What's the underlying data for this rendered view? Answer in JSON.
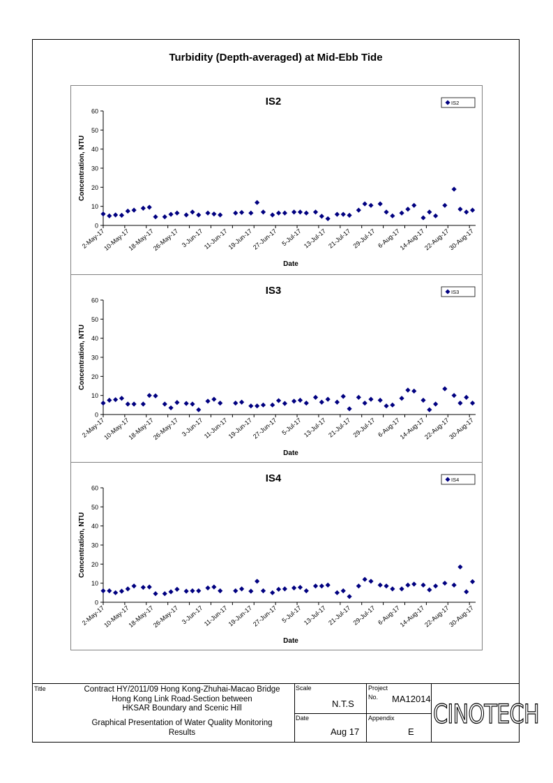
{
  "page_title": "Turbidity (Depth-averaged) at Mid-Ebb Tide",
  "chart_data": [
    {
      "type": "scatter",
      "title": "IS2",
      "xlabel": "Date",
      "ylabel": "Concentration, NTU",
      "ylim": [
        0,
        60
      ],
      "yticks": [
        0,
        10,
        20,
        30,
        40,
        50,
        60
      ],
      "xlim": [
        "2017-05-02",
        "2017-08-31"
      ],
      "xtick_labels": [
        "2-May-17",
        "10-May-17",
        "18-May-17",
        "26-May-17",
        "3-Jun-17",
        "11-Jun-17",
        "19-Jun-17",
        "27-Jun-17",
        "5-Jul-17",
        "13-Jul-17",
        "21-Jul-17",
        "29-Jul-17",
        "6-Aug-17",
        "14-Aug-17",
        "22-Aug-17",
        "30-Aug-17"
      ],
      "legend": "top-right",
      "marker_color": "#000080",
      "series": [
        {
          "name": "IS2",
          "points": [
            [
              "2017-05-02",
              6.0
            ],
            [
              "2017-05-04",
              5.0
            ],
            [
              "2017-05-06",
              5.5
            ],
            [
              "2017-05-08",
              5.3
            ],
            [
              "2017-05-10",
              7.5
            ],
            [
              "2017-05-12",
              8.0
            ],
            [
              "2017-05-15",
              9.0
            ],
            [
              "2017-05-17",
              9.5
            ],
            [
              "2017-05-19",
              4.5
            ],
            [
              "2017-05-22",
              4.5
            ],
            [
              "2017-05-24",
              5.8
            ],
            [
              "2017-05-26",
              6.5
            ],
            [
              "2017-05-29",
              5.5
            ],
            [
              "2017-05-31",
              7.0
            ],
            [
              "2017-06-02",
              5.5
            ],
            [
              "2017-06-05",
              6.5
            ],
            [
              "2017-06-07",
              6.0
            ],
            [
              "2017-06-09",
              5.5
            ],
            [
              "2017-06-14",
              6.5
            ],
            [
              "2017-06-16",
              6.8
            ],
            [
              "2017-06-19",
              6.5
            ],
            [
              "2017-06-21",
              12.0
            ],
            [
              "2017-06-23",
              7.0
            ],
            [
              "2017-06-26",
              5.5
            ],
            [
              "2017-06-28",
              6.5
            ],
            [
              "2017-06-30",
              6.5
            ],
            [
              "2017-07-03",
              7.0
            ],
            [
              "2017-07-05",
              7.0
            ],
            [
              "2017-07-07",
              6.5
            ],
            [
              "2017-07-10",
              7.0
            ],
            [
              "2017-07-12",
              4.8
            ],
            [
              "2017-07-14",
              3.5
            ],
            [
              "2017-07-17",
              5.8
            ],
            [
              "2017-07-19",
              5.8
            ],
            [
              "2017-07-21",
              5.3
            ],
            [
              "2017-07-24",
              8.0
            ],
            [
              "2017-07-26",
              11.3
            ],
            [
              "2017-07-28",
              10.5
            ],
            [
              "2017-07-31",
              11.3
            ],
            [
              "2017-08-02",
              7.0
            ],
            [
              "2017-08-04",
              5.0
            ],
            [
              "2017-08-07",
              6.5
            ],
            [
              "2017-08-09",
              8.5
            ],
            [
              "2017-08-11",
              10.5
            ],
            [
              "2017-08-14",
              4.0
            ],
            [
              "2017-08-16",
              7.0
            ],
            [
              "2017-08-18",
              5.0
            ],
            [
              "2017-08-21",
              10.5
            ],
            [
              "2017-08-24",
              19.0
            ],
            [
              "2017-08-26",
              8.5
            ],
            [
              "2017-08-28",
              7.0
            ],
            [
              "2017-08-30",
              8.0
            ]
          ]
        }
      ]
    },
    {
      "type": "scatter",
      "title": "IS3",
      "xlabel": "Date",
      "ylabel": "Concentration, NTU",
      "ylim": [
        0,
        60
      ],
      "yticks": [
        0,
        10,
        20,
        30,
        40,
        50,
        60
      ],
      "xlim": [
        "2017-05-02",
        "2017-08-31"
      ],
      "xtick_labels": [
        "2-May-17",
        "10-May-17",
        "18-May-17",
        "26-May-17",
        "3-Jun-17",
        "11-Jun-17",
        "19-Jun-17",
        "27-Jun-17",
        "5-Jul-17",
        "13-Jul-17",
        "21-Jul-17",
        "29-Jul-17",
        "6-Aug-17",
        "14-Aug-17",
        "22-Aug-17",
        "30-Aug-17"
      ],
      "legend": "top-right",
      "marker_color": "#000080",
      "series": [
        {
          "name": "IS3",
          "points": [
            [
              "2017-05-02",
              6.0
            ],
            [
              "2017-05-04",
              7.5
            ],
            [
              "2017-05-06",
              7.8
            ],
            [
              "2017-05-08",
              8.5
            ],
            [
              "2017-05-10",
              5.5
            ],
            [
              "2017-05-12",
              5.5
            ],
            [
              "2017-05-15",
              5.5
            ],
            [
              "2017-05-17",
              10.0
            ],
            [
              "2017-05-19",
              9.8
            ],
            [
              "2017-05-22",
              5.5
            ],
            [
              "2017-05-24",
              3.5
            ],
            [
              "2017-05-26",
              6.3
            ],
            [
              "2017-05-29",
              5.8
            ],
            [
              "2017-05-31",
              5.5
            ],
            [
              "2017-06-02",
              2.5
            ],
            [
              "2017-06-05",
              7.0
            ],
            [
              "2017-06-07",
              8.0
            ],
            [
              "2017-06-09",
              6.0
            ],
            [
              "2017-06-14",
              6.0
            ],
            [
              "2017-06-16",
              6.5
            ],
            [
              "2017-06-19",
              4.5
            ],
            [
              "2017-06-21",
              4.5
            ],
            [
              "2017-06-23",
              5.0
            ],
            [
              "2017-06-26",
              5.0
            ],
            [
              "2017-06-28",
              7.3
            ],
            [
              "2017-06-30",
              5.8
            ],
            [
              "2017-07-03",
              7.0
            ],
            [
              "2017-07-05",
              7.5
            ],
            [
              "2017-07-07",
              6.0
            ],
            [
              "2017-07-10",
              9.0
            ],
            [
              "2017-07-12",
              6.5
            ],
            [
              "2017-07-14",
              8.0
            ],
            [
              "2017-07-17",
              6.5
            ],
            [
              "2017-07-19",
              9.5
            ],
            [
              "2017-07-21",
              3.0
            ],
            [
              "2017-07-24",
              9.0
            ],
            [
              "2017-07-26",
              6.0
            ],
            [
              "2017-07-28",
              8.0
            ],
            [
              "2017-07-31",
              7.5
            ],
            [
              "2017-08-02",
              4.5
            ],
            [
              "2017-08-04",
              5.0
            ],
            [
              "2017-08-07",
              8.5
            ],
            [
              "2017-08-09",
              12.8
            ],
            [
              "2017-08-11",
              12.3
            ],
            [
              "2017-08-14",
              7.5
            ],
            [
              "2017-08-16",
              2.5
            ],
            [
              "2017-08-18",
              5.5
            ],
            [
              "2017-08-21",
              13.5
            ],
            [
              "2017-08-24",
              10.0
            ],
            [
              "2017-08-26",
              6.0
            ],
            [
              "2017-08-28",
              9.0
            ],
            [
              "2017-08-30",
              6.0
            ]
          ]
        }
      ]
    },
    {
      "type": "scatter",
      "title": "IS4",
      "xlabel": "Date",
      "ylabel": "Concentration, NTU",
      "ylim": [
        0,
        60
      ],
      "yticks": [
        0,
        10,
        20,
        30,
        40,
        50,
        60
      ],
      "xlim": [
        "2017-05-02",
        "2017-08-31"
      ],
      "xtick_labels": [
        "2-May-17",
        "10-May-17",
        "18-May-17",
        "26-May-17",
        "3-Jun-17",
        "11-Jun-17",
        "19-Jun-17",
        "27-Jun-17",
        "5-Jul-17",
        "13-Jul-17",
        "21-Jul-17",
        "29-Jul-17",
        "6-Aug-17",
        "14-Aug-17",
        "22-Aug-17",
        "30-Aug-17"
      ],
      "legend": "top-right",
      "marker_color": "#000080",
      "series": [
        {
          "name": "IS4",
          "points": [
            [
              "2017-05-02",
              6.0
            ],
            [
              "2017-05-04",
              6.0
            ],
            [
              "2017-05-06",
              5.0
            ],
            [
              "2017-05-08",
              5.8
            ],
            [
              "2017-05-10",
              7.0
            ],
            [
              "2017-05-12",
              8.5
            ],
            [
              "2017-05-15",
              7.8
            ],
            [
              "2017-05-17",
              8.0
            ],
            [
              "2017-05-19",
              4.5
            ],
            [
              "2017-05-22",
              4.5
            ],
            [
              "2017-05-24",
              5.5
            ],
            [
              "2017-05-26",
              6.8
            ],
            [
              "2017-05-29",
              5.8
            ],
            [
              "2017-05-31",
              6.0
            ],
            [
              "2017-06-02",
              6.0
            ],
            [
              "2017-06-05",
              7.5
            ],
            [
              "2017-06-07",
              8.0
            ],
            [
              "2017-06-09",
              6.0
            ],
            [
              "2017-06-14",
              6.0
            ],
            [
              "2017-06-16",
              7.0
            ],
            [
              "2017-06-19",
              5.8
            ],
            [
              "2017-06-21",
              11.0
            ],
            [
              "2017-06-23",
              6.0
            ],
            [
              "2017-06-26",
              5.0
            ],
            [
              "2017-06-28",
              6.8
            ],
            [
              "2017-06-30",
              7.0
            ],
            [
              "2017-07-03",
              7.5
            ],
            [
              "2017-07-05",
              7.8
            ],
            [
              "2017-07-07",
              6.0
            ],
            [
              "2017-07-10",
              8.5
            ],
            [
              "2017-07-12",
              8.5
            ],
            [
              "2017-07-14",
              9.0
            ],
            [
              "2017-07-17",
              5.0
            ],
            [
              "2017-07-19",
              6.0
            ],
            [
              "2017-07-21",
              3.0
            ],
            [
              "2017-07-24",
              8.5
            ],
            [
              "2017-07-26",
              12.0
            ],
            [
              "2017-07-28",
              11.0
            ],
            [
              "2017-07-31",
              9.0
            ],
            [
              "2017-08-02",
              8.5
            ],
            [
              "2017-08-04",
              7.0
            ],
            [
              "2017-08-07",
              7.0
            ],
            [
              "2017-08-09",
              9.0
            ],
            [
              "2017-08-11",
              9.5
            ],
            [
              "2017-08-14",
              9.0
            ],
            [
              "2017-08-16",
              6.5
            ],
            [
              "2017-08-18",
              8.5
            ],
            [
              "2017-08-21",
              10.0
            ],
            [
              "2017-08-24",
              9.0
            ],
            [
              "2017-08-26",
              18.5
            ],
            [
              "2017-08-28",
              5.5
            ],
            [
              "2017-08-30",
              10.8
            ]
          ]
        }
      ]
    }
  ],
  "title_block": {
    "title_label": "Title",
    "contract_line1": "Contract HY/2011/09 Hong Kong-Zhuhai-Macao Bridge",
    "contract_line2": "Hong Kong Link Road-Section between",
    "contract_line3": "HKSAR Boundary and Scenic Hill",
    "subject_line1": "Graphical Presentation of Water Quality Monitoring",
    "subject_line2": "Results",
    "scale_label": "Scale",
    "scale_value": "N.T.S",
    "date_label": "Date",
    "date_value": "Aug 17",
    "project_label": "Project",
    "project_no_label": "No.",
    "project_no_value": "MA12014",
    "appendix_label": "Appendix",
    "appendix_value": "E",
    "logo_text": "CINOTECH"
  }
}
